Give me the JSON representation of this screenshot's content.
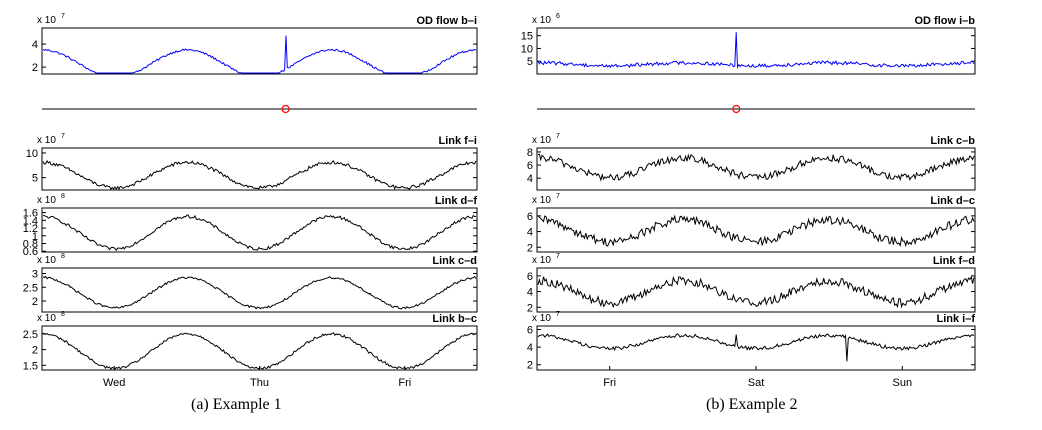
{
  "figure": {
    "caption_left": "(a) Example 1",
    "caption_right": "(b) Example 2"
  },
  "chart_data": [
    {
      "type": "line",
      "panel": "Example 1",
      "title": "OD flow b–i",
      "y_multiplier": "x 10",
      "y_exponent": "7",
      "yticks": [
        "4",
        "2"
      ],
      "ylim": [
        1.4,
        5.4
      ],
      "color": "#0000ff",
      "shape": {
        "base": 2.3,
        "amp": 1.2,
        "phase": 0.75,
        "noise": 0.09,
        "spikes": [
          [
            0.56,
            3.0
          ]
        ]
      }
    },
    {
      "type": "line",
      "panel": "Example 1",
      "title": "Link f–i",
      "y_multiplier": "x 10",
      "y_exponent": "7",
      "yticks": [
        "10",
        "5"
      ],
      "ylim": [
        2.5,
        11
      ],
      "color": "#000000",
      "shape": {
        "base": 5.5,
        "amp": 2.6,
        "phase": 0.75,
        "noise": 0.35,
        "spikes": []
      }
    },
    {
      "type": "line",
      "panel": "Example 1",
      "title": "Link d–f",
      "y_multiplier": "x 10",
      "y_exponent": "8",
      "yticks": [
        "1.6",
        "1.4",
        "1.2",
        "1",
        "0.8",
        "0.6"
      ],
      "ylim": [
        0.58,
        1.72
      ],
      "color": "#000000",
      "shape": {
        "base": 1.08,
        "amp": 0.42,
        "phase": 0.75,
        "noise": 0.04,
        "spikes": []
      }
    },
    {
      "type": "line",
      "panel": "Example 1",
      "title": "Link c–d",
      "y_multiplier": "x 10",
      "y_exponent": "8",
      "yticks": [
        "3",
        "2.5",
        "2"
      ],
      "ylim": [
        1.6,
        3.2
      ],
      "color": "#000000",
      "shape": {
        "base": 2.3,
        "amp": 0.55,
        "phase": 0.75,
        "noise": 0.04,
        "spikes": []
      }
    },
    {
      "type": "line",
      "panel": "Example 1",
      "title": "Link b–c",
      "y_multiplier": "x 10",
      "y_exponent": "8",
      "yticks": [
        "2.5",
        "2",
        "1.5"
      ],
      "ylim": [
        1.35,
        2.75
      ],
      "color": "#000000",
      "shape": {
        "base": 1.95,
        "amp": 0.55,
        "phase": 0.75,
        "noise": 0.04,
        "spikes": []
      }
    },
    {
      "type": "line",
      "panel": "Example 2",
      "title": "OD flow i–b",
      "y_multiplier": "x 10",
      "y_exponent": "6",
      "yticks": [
        "15",
        "10",
        "5"
      ],
      "ylim": [
        0,
        18
      ],
      "color": "#0000ff",
      "shape": {
        "base": 3.8,
        "amp": 0.6,
        "phase": 0.75,
        "noise": 0.7,
        "spikes": [
          [
            0.455,
            13.5
          ]
        ]
      }
    },
    {
      "type": "line",
      "panel": "Example 2",
      "title": "Link c–b",
      "y_multiplier": "x 10",
      "y_exponent": "7",
      "yticks": [
        "8",
        "6",
        "4"
      ],
      "ylim": [
        2.2,
        8.6
      ],
      "color": "#000000",
      "shape": {
        "base": 5.6,
        "amp": 1.5,
        "phase": 0.75,
        "noise": 0.55,
        "spikes": []
      }
    },
    {
      "type": "line",
      "panel": "Example 2",
      "title": "Link d–c",
      "y_multiplier": "x 10",
      "y_exponent": "7",
      "yticks": [
        "6",
        "4",
        "2"
      ],
      "ylim": [
        1.4,
        7.0
      ],
      "color": "#000000",
      "shape": {
        "base": 4.1,
        "amp": 1.4,
        "phase": 0.75,
        "noise": 0.55,
        "spikes": []
      }
    },
    {
      "type": "line",
      "panel": "Example 2",
      "title": "Link f–d",
      "y_multiplier": "x 10",
      "y_exponent": "7",
      "yticks": [
        "6",
        "4",
        "2"
      ],
      "ylim": [
        1.4,
        7.0
      ],
      "color": "#000000",
      "shape": {
        "base": 4.0,
        "amp": 1.4,
        "phase": 0.75,
        "noise": 0.55,
        "spikes": []
      }
    },
    {
      "type": "line",
      "panel": "Example 2",
      "title": "Link i–f",
      "y_multiplier": "x 10",
      "y_exponent": "7",
      "yticks": [
        "6",
        "4",
        "2"
      ],
      "ylim": [
        1.4,
        6.4
      ],
      "color": "#000000",
      "shape": {
        "base": 4.6,
        "amp": 0.75,
        "phase": 0.75,
        "noise": 0.2,
        "spikes": [
          [
            0.455,
            1.3
          ],
          [
            0.71,
            -2.9
          ]
        ]
      }
    }
  ],
  "x_axes": [
    {
      "panel": "Example 1",
      "ticks": [
        {
          "label": "Wed",
          "pos": 0.166
        },
        {
          "label": "Thu",
          "pos": 0.5
        },
        {
          "label": "Fri",
          "pos": 0.834
        }
      ]
    },
    {
      "panel": "Example 2",
      "ticks": [
        {
          "label": "Fri",
          "pos": 0.166
        },
        {
          "label": "Sat",
          "pos": 0.5
        },
        {
          "label": "Sun",
          "pos": 0.834
        }
      ]
    }
  ],
  "markers": [
    {
      "panel": "Example 1",
      "pos": 0.56,
      "color": "#ff0000"
    },
    {
      "panel": "Example 2",
      "pos": 0.455,
      "color": "#ff0000"
    }
  ]
}
